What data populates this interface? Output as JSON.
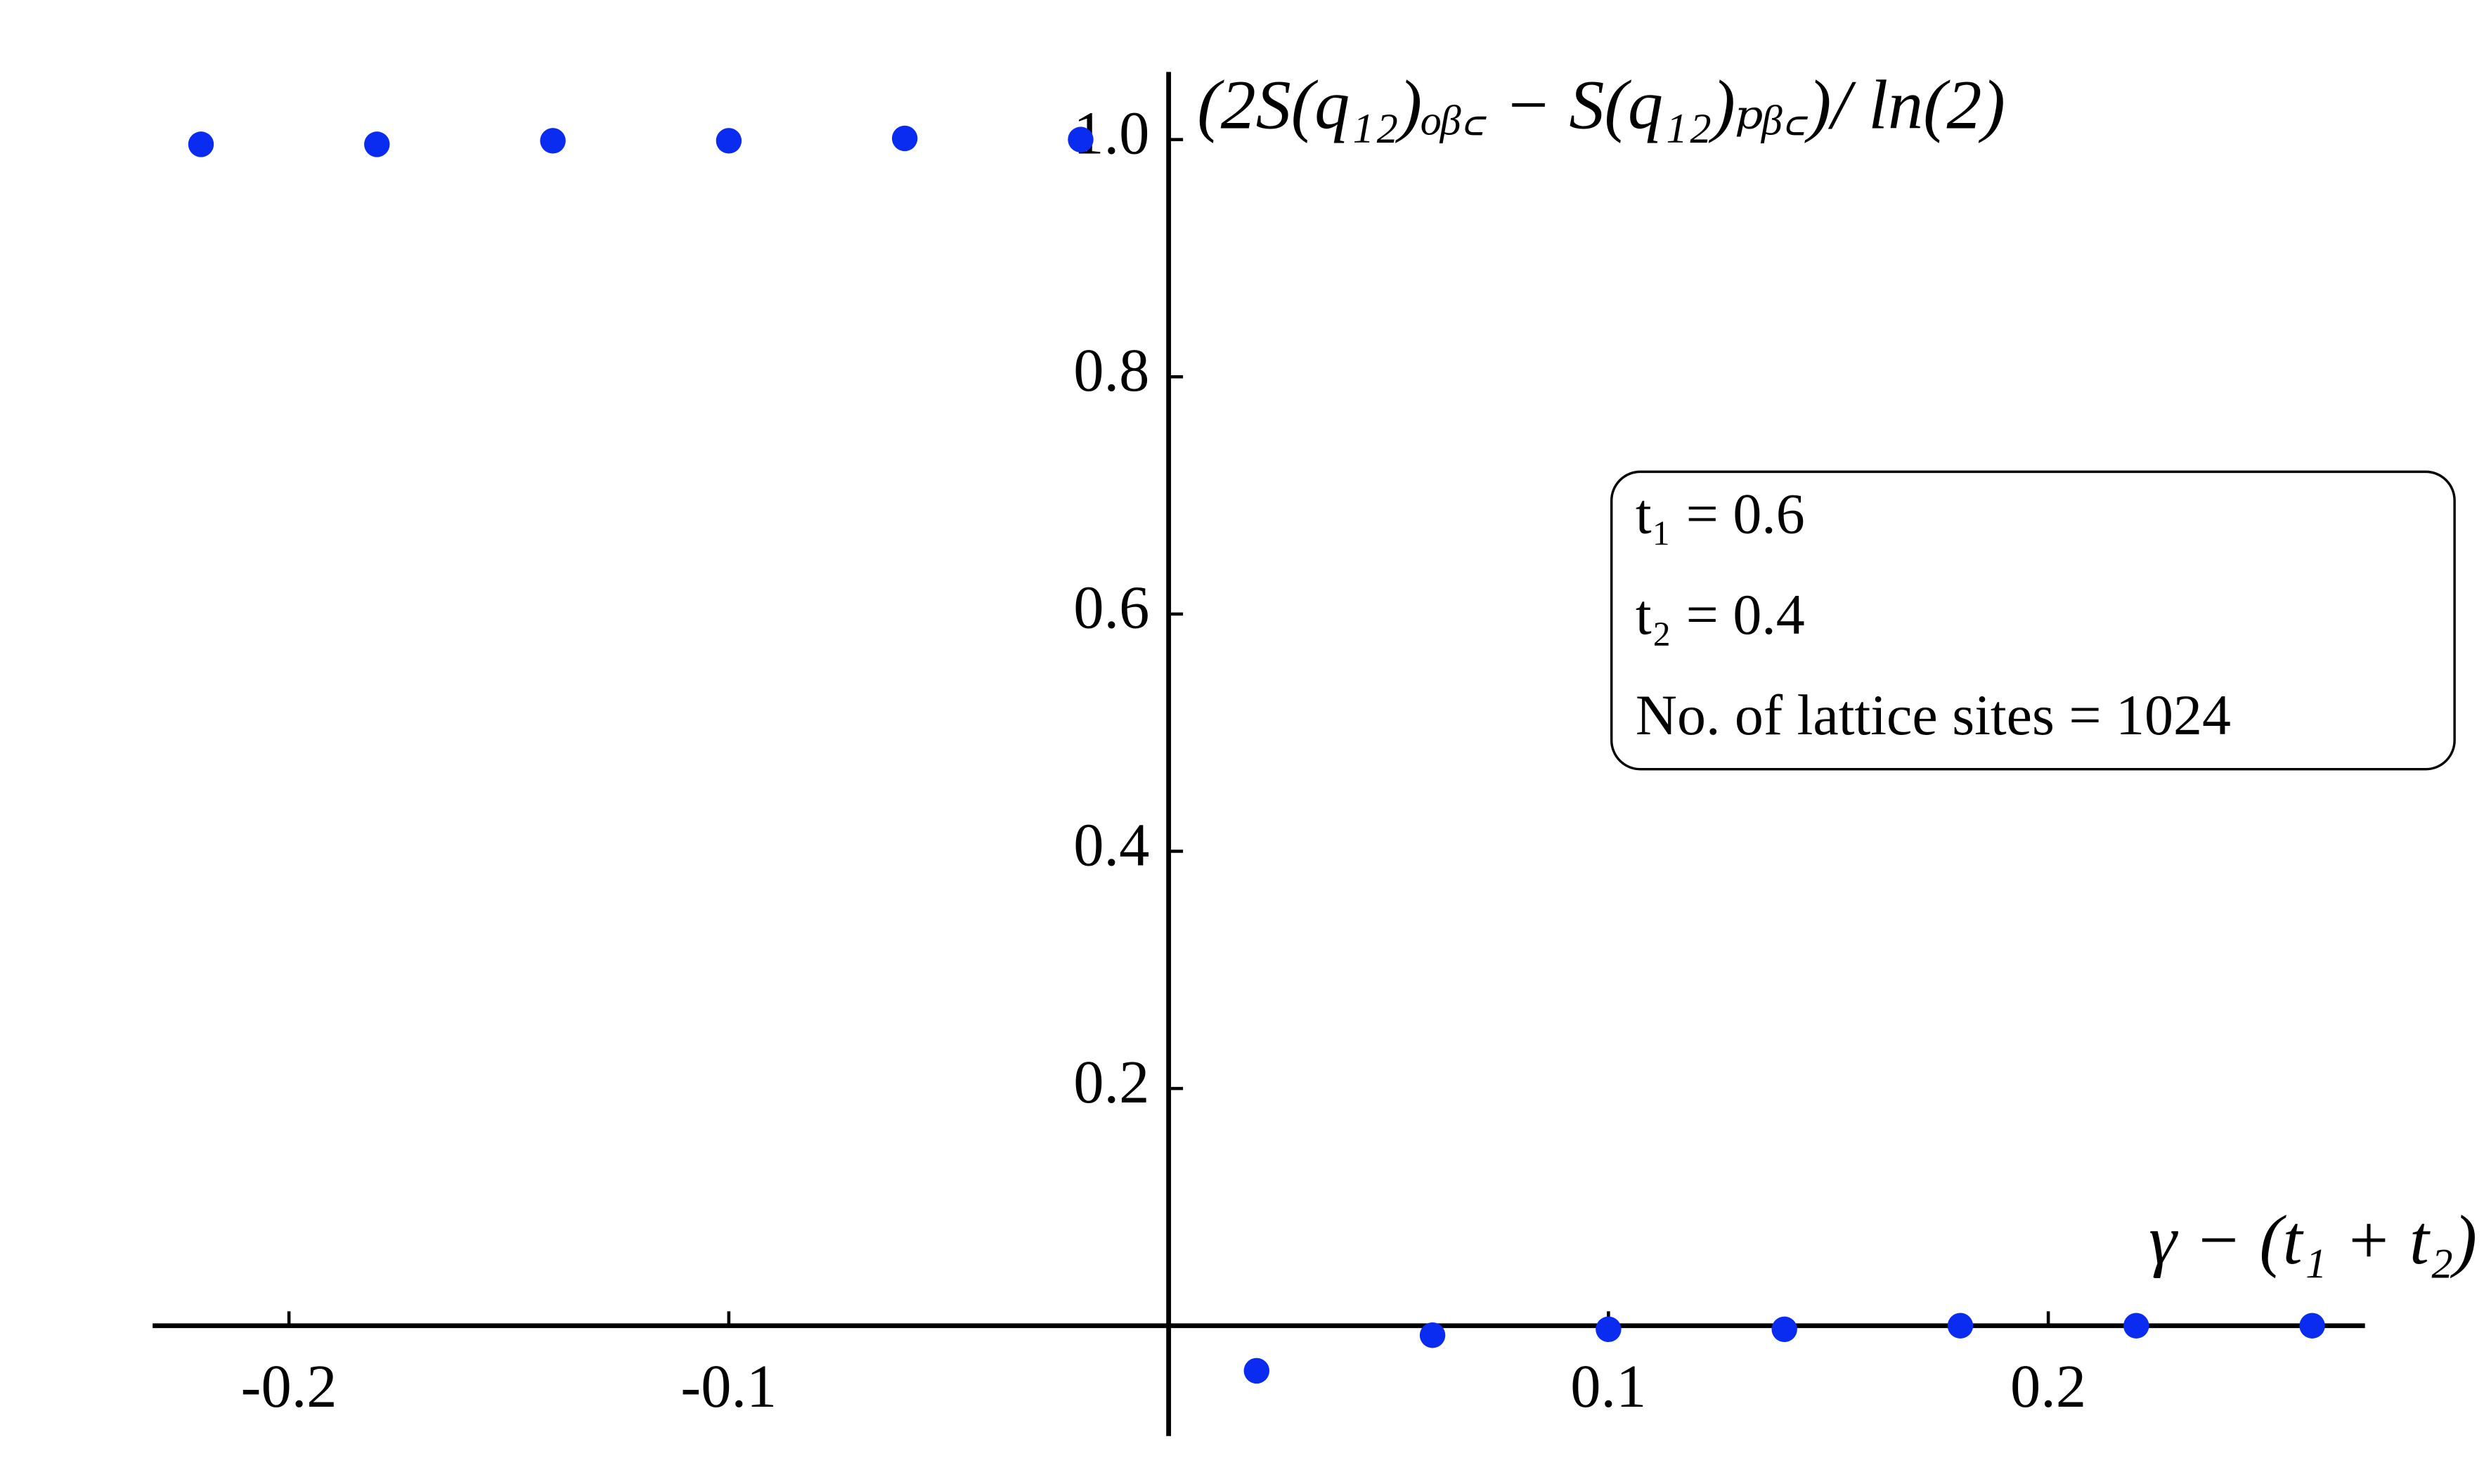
{
  "chart_data": {
    "type": "scatter",
    "y_label": "(2S(q₁₂)ₒᵦ꜀ − S(q₁₂)ₚᵦ꜀)/ ln(2)",
    "x_label": "γ − (t₁ + t₂)",
    "annotations": [
      "t₁ = 0.6",
      "t₂ = 0.4",
      "No. of lattice sites  = 1024"
    ],
    "x": [
      -0.22,
      -0.18,
      -0.14,
      -0.1,
      -0.06,
      -0.02,
      0.02,
      0.06,
      0.1,
      0.14,
      0.18,
      0.22,
      0.26
    ],
    "series": [
      {
        "name": "data",
        "color": "#0a2cf0",
        "values": [
          0.996,
          0.996,
          0.999,
          0.999,
          1.001,
          1.0,
          -0.038,
          -0.008,
          -0.003,
          -0.003,
          0.0,
          0.0,
          0.0
        ]
      }
    ],
    "xlim": [
      -0.231,
      0.272
    ],
    "ylim": [
      -0.093,
      1.057
    ],
    "xticks": [
      -0.2,
      -0.1,
      0.1,
      0.2
    ],
    "yticks": [
      0.2,
      0.4,
      0.6,
      0.8,
      {
        "value": 1,
        "label": "1.0"
      }
    ],
    "grid": false
  }
}
